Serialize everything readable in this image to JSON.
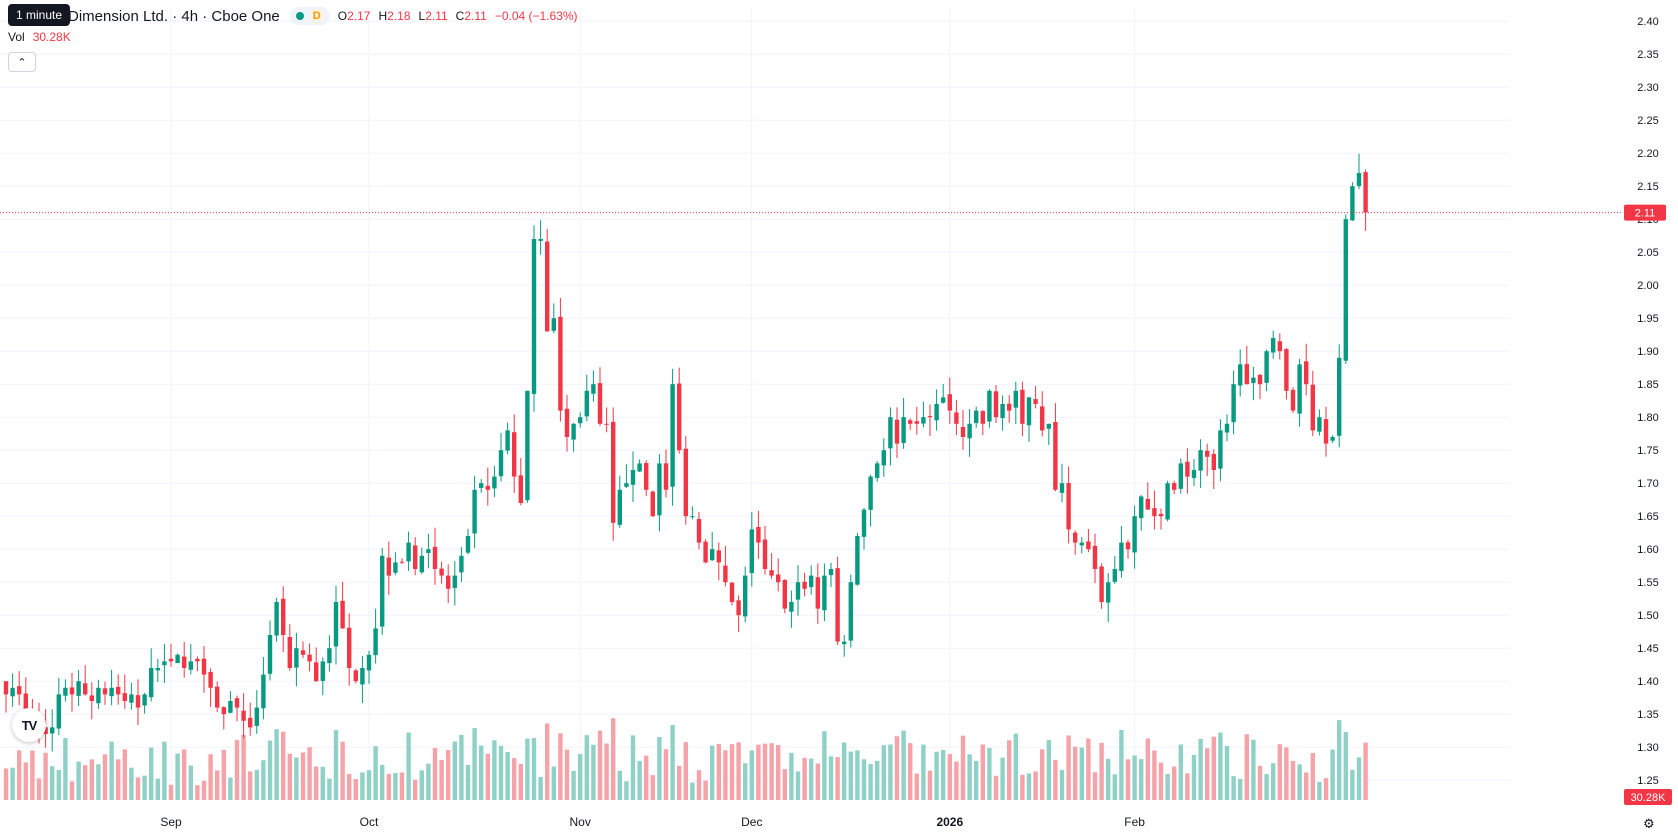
{
  "header": {
    "title": "Dimension Ltd. · 4h · Cboe One",
    "interval_badge": "D",
    "ohlc": [
      {
        "k": "O",
        "v": "2.17"
      },
      {
        "k": "H",
        "v": "2.18"
      },
      {
        "k": "L",
        "v": "2.11"
      },
      {
        "k": "C",
        "v": "2.11"
      }
    ],
    "change": "−0.04 (−1.63%)",
    "tooltip": "1 minute"
  },
  "volume": {
    "label": "Vol",
    "value": "30.28K"
  },
  "colors": {
    "up": "#089981",
    "down": "#f23645",
    "up_vol": "#8fd1c6",
    "down_vol": "#f5a3a9",
    "grid": "#f0f3fa",
    "text": "#131722"
  },
  "icons": {
    "collapse": "chevron-up-icon",
    "logo": "tradingview-logo-icon",
    "settings": "gear-icon"
  },
  "chart_data": {
    "type": "candlestick",
    "title": "Dimension Ltd. · 4h · Cboe One",
    "y_ticks": [
      "2.40",
      "2.35",
      "2.30",
      "2.25",
      "2.20",
      "2.15",
      "2.10",
      "2.05",
      "2.00",
      "1.95",
      "1.90",
      "1.85",
      "1.80",
      "1.75",
      "1.70",
      "1.65",
      "1.60",
      "1.55",
      "1.50",
      "1.45",
      "1.40",
      "1.35",
      "1.30",
      "1.25"
    ],
    "ylim": [
      1.22,
      2.42
    ],
    "x_labels": [
      {
        "label": "Sep",
        "bar_index": 25,
        "bold": false
      },
      {
        "label": "Oct",
        "bar_index": 55,
        "bold": false
      },
      {
        "label": "Nov",
        "bar_index": 87,
        "bold": false
      },
      {
        "label": "Dec",
        "bar_index": 113,
        "bold": false
      },
      {
        "label": "2026",
        "bar_index": 143,
        "bold": true
      },
      {
        "label": "Feb",
        "bar_index": 171,
        "bold": false
      }
    ],
    "last_price": "2.11",
    "last_volume": "30.28K",
    "grid": true,
    "closes": [
      1.38,
      1.39,
      1.38,
      1.35,
      1.34,
      1.33,
      1.32,
      1.33,
      1.38,
      1.39,
      1.38,
      1.4,
      1.38,
      1.37,
      1.39,
      1.38,
      1.39,
      1.38,
      1.37,
      1.38,
      1.36,
      1.38,
      1.42,
      1.42,
      1.43,
      1.43,
      1.44,
      1.42,
      1.43,
      1.43,
      1.41,
      1.39,
      1.36,
      1.35,
      1.37,
      1.36,
      1.34,
      1.33,
      1.36,
      1.41,
      1.47,
      1.52,
      1.47,
      1.42,
      1.45,
      1.44,
      1.43,
      1.4,
      1.43,
      1.45,
      1.52,
      1.48,
      1.42,
      1.4,
      1.42,
      1.44,
      1.48,
      1.59,
      1.56,
      1.58,
      1.58,
      1.61,
      1.57,
      1.59,
      1.6,
      1.57,
      1.56,
      1.54,
      1.56,
      1.59,
      1.62,
      1.69,
      1.7,
      1.69,
      1.71,
      1.75,
      1.78,
      1.71,
      1.67,
      1.84,
      2.07,
      2.07,
      1.93,
      1.95,
      1.81,
      1.77,
      1.79,
      1.8,
      1.84,
      1.85,
      1.79,
      1.79,
      1.64,
      1.69,
      1.7,
      1.72,
      1.73,
      1.69,
      1.65,
      1.73,
      1.69,
      1.85,
      1.75,
      1.65,
      1.65,
      1.61,
      1.58,
      1.6,
      1.58,
      1.55,
      1.52,
      1.5,
      1.56,
      1.63,
      1.61,
      1.57,
      1.56,
      1.55,
      1.51,
      1.52,
      1.55,
      1.54,
      1.56,
      1.51,
      1.56,
      1.57,
      1.46,
      1.46,
      1.55,
      1.62,
      1.66,
      1.71,
      1.73,
      1.75,
      1.8,
      1.76,
      1.8,
      1.79,
      1.79,
      1.8,
      1.8,
      1.82,
      1.83,
      1.81,
      1.79,
      1.77,
      1.79,
      1.81,
      1.79,
      1.84,
      1.8,
      1.82,
      1.81,
      1.84,
      1.79,
      1.83,
      1.82,
      1.78,
      1.79,
      1.69,
      1.7,
      1.63,
      1.61,
      1.61,
      1.6,
      1.57,
      1.52,
      1.55,
      1.57,
      1.61,
      1.6,
      1.65,
      1.68,
      1.66,
      1.65,
      1.65,
      1.7,
      1.69,
      1.73,
      1.71,
      1.72,
      1.75,
      1.74,
      1.72,
      1.78,
      1.79,
      1.85,
      1.88,
      1.85,
      1.86,
      1.85,
      1.9,
      1.92,
      1.9,
      1.84,
      1.81,
      1.88,
      1.85,
      1.78,
      1.8,
      1.76,
      1.77,
      1.89,
      2.1,
      2.15,
      2.17,
      2.11
    ]
  }
}
